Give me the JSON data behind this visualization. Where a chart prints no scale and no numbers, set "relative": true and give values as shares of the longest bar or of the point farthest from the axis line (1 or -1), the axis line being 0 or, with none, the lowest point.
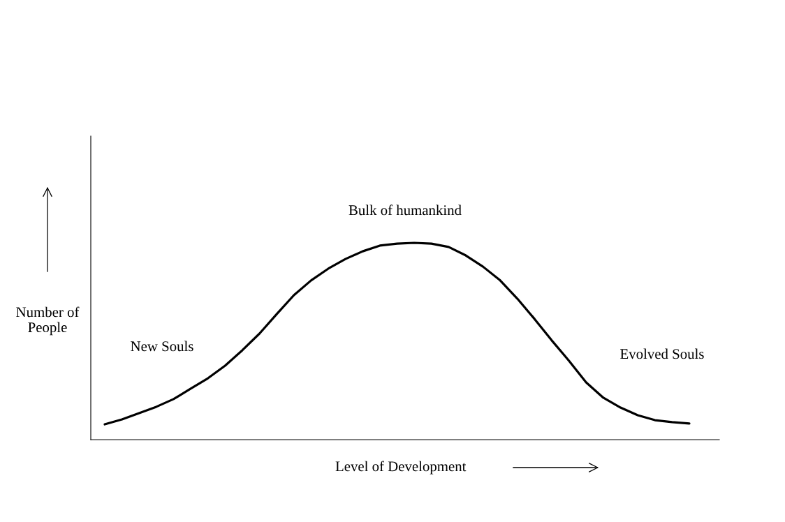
{
  "chart_data": {
    "type": "line",
    "relative": true,
    "xlabel": "Level of Development",
    "ylabel": "Number of People",
    "color": "#000000",
    "categories": [
      null,
      null,
      null,
      null,
      null,
      null,
      null,
      null,
      null,
      null,
      null,
      null,
      null,
      null,
      null,
      null,
      null,
      null,
      null,
      null,
      null,
      null,
      null,
      null,
      null,
      null,
      null,
      null,
      null,
      null,
      null,
      null,
      null,
      null,
      null
    ],
    "values": [
      0.078,
      0.103,
      0.135,
      0.167,
      0.206,
      0.259,
      0.312,
      0.376,
      0.454,
      0.539,
      0.638,
      0.734,
      0.809,
      0.869,
      0.918,
      0.957,
      0.986,
      0.996,
      1.0,
      0.996,
      0.979,
      0.936,
      0.879,
      0.809,
      0.716,
      0.613,
      0.504,
      0.401,
      0.291,
      0.213,
      0.163,
      0.124,
      0.099,
      0.089,
      0.082
    ],
    "annotations": [
      "New Souls",
      "Bulk of humankind",
      "Evolved Souls"
    ]
  }
}
